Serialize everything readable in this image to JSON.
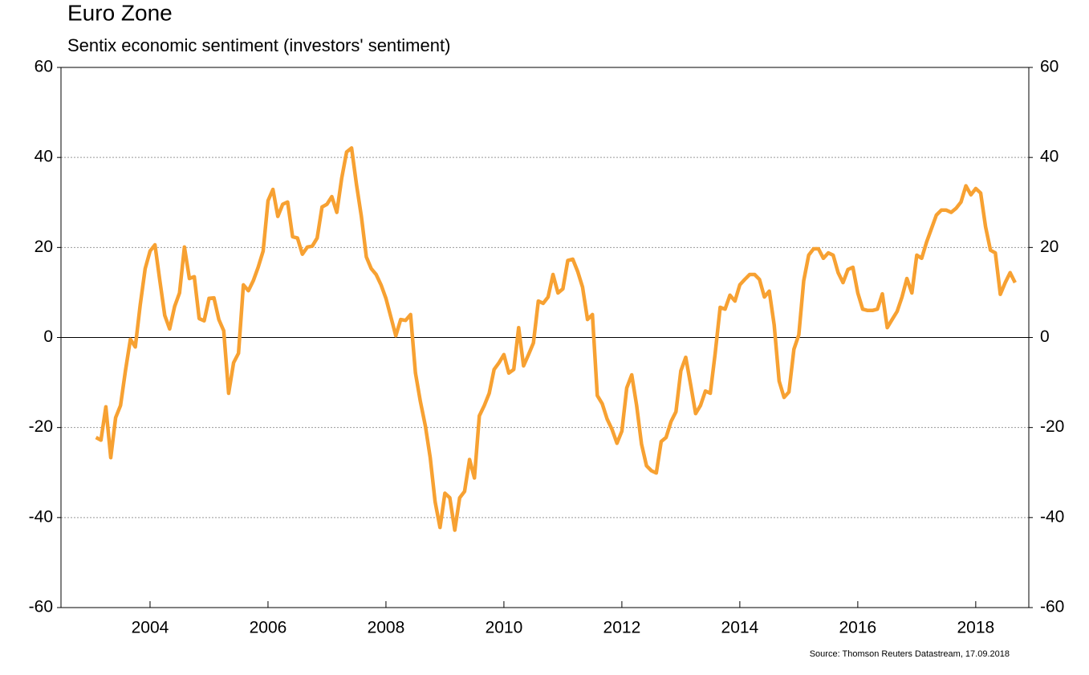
{
  "chart_data": {
    "type": "line",
    "title": "Euro Zone",
    "subtitle": "Sentix economic sentiment (investors' sentiment)",
    "source": "Source: Thomson Reuters Datastream, 17.09.2018",
    "x": [
      2003.083,
      2003.167,
      2003.25,
      2003.333,
      2003.417,
      2003.5,
      2003.583,
      2003.667,
      2003.75,
      2003.833,
      2003.917,
      2004.0,
      2004.083,
      2004.167,
      2004.25,
      2004.333,
      2004.417,
      2004.5,
      2004.583,
      2004.667,
      2004.75,
      2004.833,
      2004.917,
      2005.0,
      2005.083,
      2005.167,
      2005.25,
      2005.333,
      2005.417,
      2005.5,
      2005.583,
      2005.667,
      2005.75,
      2005.833,
      2005.917,
      2006.0,
      2006.083,
      2006.167,
      2006.25,
      2006.333,
      2006.417,
      2006.5,
      2006.583,
      2006.667,
      2006.75,
      2006.833,
      2006.917,
      2007.0,
      2007.083,
      2007.167,
      2007.25,
      2007.333,
      2007.417,
      2007.5,
      2007.583,
      2007.667,
      2007.75,
      2007.833,
      2007.917,
      2008.0,
      2008.083,
      2008.167,
      2008.25,
      2008.333,
      2008.417,
      2008.5,
      2008.583,
      2008.667,
      2008.75,
      2008.833,
      2008.917,
      2009.0,
      2009.083,
      2009.167,
      2009.25,
      2009.333,
      2009.417,
      2009.5,
      2009.583,
      2009.667,
      2009.75,
      2009.833,
      2009.917,
      2010.0,
      2010.083,
      2010.167,
      2010.25,
      2010.333,
      2010.417,
      2010.5,
      2010.583,
      2010.667,
      2010.75,
      2010.833,
      2010.917,
      2011.0,
      2011.083,
      2011.167,
      2011.25,
      2011.333,
      2011.417,
      2011.5,
      2011.583,
      2011.667,
      2011.75,
      2011.833,
      2011.917,
      2012.0,
      2012.083,
      2012.167,
      2012.25,
      2012.333,
      2012.417,
      2012.5,
      2012.583,
      2012.667,
      2012.75,
      2012.833,
      2012.917,
      2013.0,
      2013.083,
      2013.167,
      2013.25,
      2013.333,
      2013.417,
      2013.5,
      2013.583,
      2013.667,
      2013.75,
      2013.833,
      2013.917,
      2014.0,
      2014.083,
      2014.167,
      2014.25,
      2014.333,
      2014.417,
      2014.5,
      2014.583,
      2014.667,
      2014.75,
      2014.833,
      2014.917,
      2015.0,
      2015.083,
      2015.167,
      2015.25,
      2015.333,
      2015.417,
      2015.5,
      2015.583,
      2015.667,
      2015.75,
      2015.833,
      2015.917,
      2016.0,
      2016.083,
      2016.167,
      2016.25,
      2016.333,
      2016.417,
      2016.5,
      2016.583,
      2016.667,
      2016.75,
      2016.833,
      2016.917,
      2017.0,
      2017.083,
      2017.167,
      2017.25,
      2017.333,
      2017.417,
      2017.5,
      2017.583,
      2017.667,
      2017.75,
      2017.833,
      2017.917,
      2018.0,
      2018.083,
      2018.167,
      2018.25,
      2018.333,
      2018.417,
      2018.5,
      2018.583,
      2018.667
    ],
    "series": [
      {
        "color": "#f7a132",
        "values": [
          -22.2,
          -22.8,
          -15.4,
          -26.7,
          -17.8,
          -15.1,
          -7.4,
          -0.4,
          -2.1,
          7.2,
          15.3,
          19.2,
          20.6,
          12.6,
          4.9,
          1.9,
          6.9,
          9.9,
          20.1,
          13.1,
          13.5,
          4.2,
          3.7,
          8.7,
          8.8,
          4.0,
          1.5,
          -12.4,
          -5.6,
          -3.5,
          11.7,
          10.4,
          12.6,
          15.6,
          19.2,
          30.4,
          32.9,
          26.9,
          29.6,
          30.1,
          22.4,
          22.1,
          18.5,
          20.1,
          20.3,
          22.1,
          29.0,
          29.6,
          31.3,
          27.8,
          35.4,
          41.2,
          42.1,
          34.0,
          26.9,
          17.9,
          15.3,
          14.0,
          11.7,
          8.7,
          4.6,
          0.4,
          4.0,
          3.8,
          5.1,
          -7.9,
          -14.2,
          -19.6,
          -26.7,
          -36.5,
          -42.2,
          -34.6,
          -35.6,
          -42.8,
          -35.6,
          -34.2,
          -27.1,
          -31.2,
          -17.4,
          -15.1,
          -12.4,
          -7.1,
          -5.6,
          -3.8,
          -7.9,
          -7.1,
          2.2,
          -6.3,
          -3.8,
          -1.2,
          8.1,
          7.6,
          9.0,
          14.0,
          9.9,
          10.8,
          17.1,
          17.4,
          14.7,
          11.2,
          4.0,
          5.1,
          -12.9,
          -14.7,
          -18.1,
          -20.4,
          -23.5,
          -20.8,
          -11.2,
          -8.3,
          -15.1,
          -23.7,
          -28.5,
          -29.6,
          -30.1,
          -23.1,
          -22.2,
          -18.7,
          -16.5,
          -7.4,
          -4.4,
          -10.6,
          -16.9,
          -15.1,
          -11.9,
          -12.4,
          -3.5,
          6.7,
          6.3,
          9.4,
          8.1,
          11.7,
          12.9,
          14.0,
          14.0,
          12.9,
          9.0,
          10.3,
          2.8,
          -9.7,
          -13.3,
          -12.1,
          -2.6,
          0.6,
          12.6,
          18.3,
          19.7,
          19.7,
          17.6,
          18.8,
          18.3,
          14.4,
          12.2,
          15.1,
          15.6,
          9.9,
          6.3,
          6.0,
          6.0,
          6.3,
          9.7,
          2.2,
          4.0,
          5.8,
          9.0,
          13.1,
          9.9,
          18.3,
          17.6,
          21.2,
          24.2,
          27.2,
          28.3,
          28.3,
          27.8,
          28.7,
          30.1,
          33.7,
          31.7,
          33.1,
          32.1,
          24.6,
          19.4,
          18.8,
          9.6,
          12.2,
          14.4,
          12.2
        ]
      }
    ],
    "xlim": [
      2002.49,
      2018.9
    ],
    "xticks": [
      2004,
      2006,
      2008,
      2010,
      2012,
      2014,
      2016,
      2018
    ],
    "ylim": [
      -60,
      60
    ],
    "yticks": [
      -60,
      -40,
      -20,
      0,
      20,
      40,
      60
    ],
    "grid": true
  }
}
